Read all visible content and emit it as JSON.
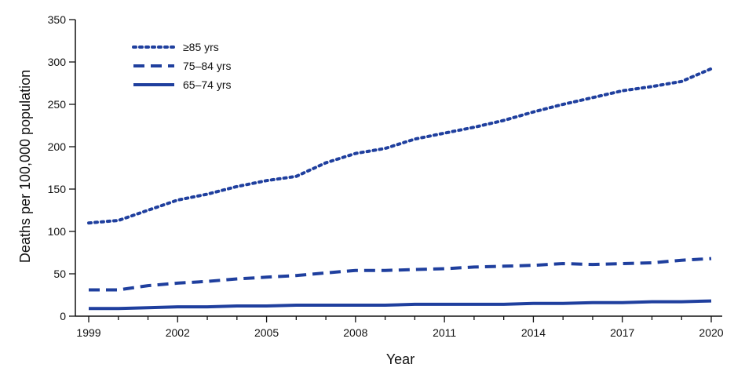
{
  "chart_data": {
    "type": "line",
    "xlabel": "Year",
    "ylabel": "Deaths per 100,000 population",
    "ylim": [
      0,
      350
    ],
    "yticks": [
      0,
      50,
      100,
      150,
      200,
      250,
      300,
      350
    ],
    "xlim": [
      1999,
      2020
    ],
    "xticks": [
      1999,
      2002,
      2005,
      2008,
      2011,
      2014,
      2017,
      2020
    ],
    "x": [
      1999,
      2000,
      2001,
      2002,
      2003,
      2004,
      2005,
      2006,
      2007,
      2008,
      2009,
      2010,
      2011,
      2012,
      2013,
      2014,
      2015,
      2016,
      2017,
      2018,
      2019,
      2020
    ],
    "grid": false,
    "legend_position": "top-left",
    "series": [
      {
        "name": "≥85 yrs",
        "style": "dotted",
        "values": [
          110,
          113,
          125,
          137,
          144,
          153,
          160,
          165,
          181,
          192,
          198,
          209,
          216,
          223,
          231,
          241,
          250,
          258,
          266,
          271,
          277,
          292
        ]
      },
      {
        "name": "75–84 yrs",
        "style": "dashed",
        "values": [
          31,
          31,
          36,
          39,
          41,
          44,
          46,
          48,
          51,
          54,
          54,
          55,
          56,
          58,
          59,
          60,
          62,
          61,
          62,
          63,
          66,
          68
        ]
      },
      {
        "name": "65–74 yrs",
        "style": "solid",
        "values": [
          9,
          9,
          10,
          11,
          11,
          12,
          12,
          13,
          13,
          13,
          13,
          14,
          14,
          14,
          14,
          15,
          15,
          16,
          16,
          17,
          17,
          18
        ]
      }
    ],
    "colors": {
      "line": "#1f3f9e",
      "axis": "#111111"
    }
  }
}
